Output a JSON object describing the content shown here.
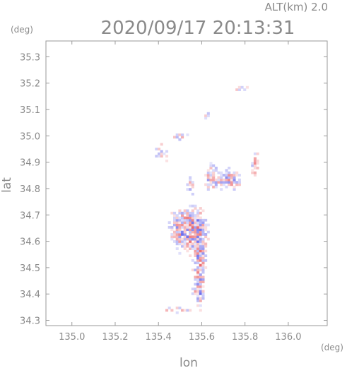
{
  "chart_data": {
    "type": "heatmap",
    "title": "2020/09/17 20:13:31",
    "subtitle": "ALT(km)  2.0",
    "xlabel": "lon",
    "ylabel": "lat",
    "x_unit": "(deg)",
    "y_unit": "(deg)",
    "xlim": [
      134.88,
      136.18
    ],
    "ylim": [
      34.28,
      35.36
    ],
    "x_ticks": [
      135.0,
      135.2,
      135.4,
      135.6,
      135.8,
      136.0
    ],
    "x_tick_labels": [
      "135.0",
      "135.2",
      "135.4",
      "135.6",
      "135.8",
      "136.0"
    ],
    "y_ticks": [
      34.3,
      34.4,
      34.5,
      34.6,
      34.7,
      34.8,
      34.9,
      35.0,
      35.1,
      35.2,
      35.3
    ],
    "y_tick_labels": [
      "34.3",
      "34.4",
      "34.5",
      "34.6",
      "34.7",
      "34.8",
      "34.9",
      "35.0",
      "35.1",
      "35.2",
      "35.3"
    ],
    "grid": false,
    "positive_color": "#e8555a",
    "negative_color": "#5a5ae8",
    "clusters": [
      {
        "lon": 135.51,
        "lat": 34.64,
        "sx": 0.04,
        "sy": 0.05,
        "amp": 1.0
      },
      {
        "lon": 135.57,
        "lat": 34.64,
        "sx": 0.03,
        "sy": 0.045,
        "amp": 1.0
      },
      {
        "lon": 135.585,
        "lat": 34.5,
        "sx": 0.018,
        "sy": 0.08,
        "amp": 1.0
      },
      {
        "lon": 135.58,
        "lat": 34.4,
        "sx": 0.015,
        "sy": 0.02,
        "amp": 0.8
      },
      {
        "lon": 135.64,
        "lat": 34.84,
        "sx": 0.02,
        "sy": 0.03,
        "amp": 0.9
      },
      {
        "lon": 135.72,
        "lat": 34.83,
        "sx": 0.035,
        "sy": 0.025,
        "amp": 0.9
      },
      {
        "lon": 135.84,
        "lat": 34.89,
        "sx": 0.01,
        "sy": 0.035,
        "amp": 0.8
      },
      {
        "lon": 135.5,
        "lat": 34.99,
        "sx": 0.03,
        "sy": 0.012,
        "amp": 0.5
      },
      {
        "lon": 135.62,
        "lat": 35.07,
        "sx": 0.01,
        "sy": 0.01,
        "amp": 0.6
      },
      {
        "lon": 135.78,
        "lat": 35.175,
        "sx": 0.025,
        "sy": 0.008,
        "amp": 0.6
      },
      {
        "lon": 135.47,
        "lat": 34.335,
        "sx": 0.06,
        "sy": 0.008,
        "amp": 0.5
      },
      {
        "lon": 135.54,
        "lat": 34.81,
        "sx": 0.015,
        "sy": 0.03,
        "amp": 0.5
      },
      {
        "lon": 135.41,
        "lat": 34.93,
        "sx": 0.03,
        "sy": 0.03,
        "amp": 0.4
      }
    ]
  }
}
